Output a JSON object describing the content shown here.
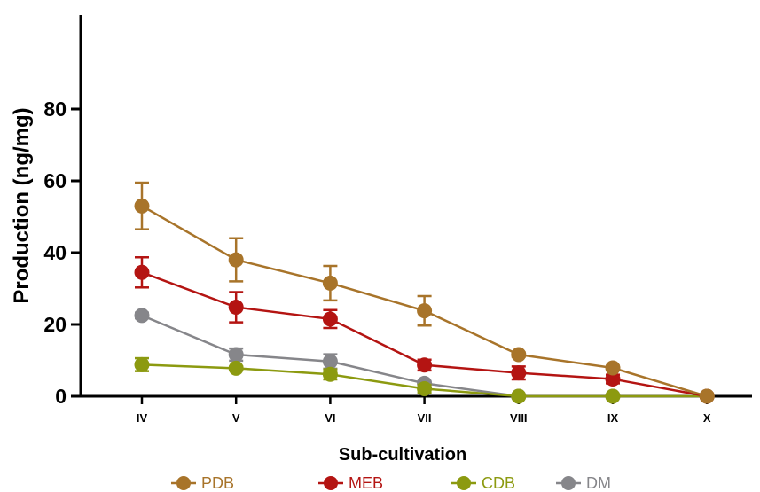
{
  "chart_data": {
    "type": "line",
    "title": "",
    "xlabel": "Sub-cultivation",
    "ylabel": "Production (ng/mg)",
    "categories": [
      "IV",
      "V",
      "VI",
      "VII",
      "VIII",
      "IX",
      "X"
    ],
    "ylim": [
      0,
      80
    ],
    "yticks": [
      0,
      20,
      40,
      60,
      80
    ],
    "grid": false,
    "legend_position": "bottom",
    "series": [
      {
        "name": "PDB",
        "color": "#A8742A",
        "values": [
          53,
          38,
          31.5,
          23.8,
          11.6,
          7.9,
          0
        ],
        "errors": [
          6.5,
          6,
          4.8,
          4.1,
          0.6,
          0.6,
          0
        ]
      },
      {
        "name": "MEB",
        "color": "#B41412",
        "values": [
          34.5,
          24.8,
          21.5,
          8.7,
          6.5,
          4.8,
          0
        ],
        "errors": [
          4.2,
          4.2,
          2.5,
          1.5,
          1.8,
          1.2,
          0
        ]
      },
      {
        "name": "CDB",
        "color": "#8C9A10",
        "values": [
          8.8,
          7.8,
          6.1,
          2.1,
          0,
          0,
          0
        ],
        "errors": [
          1.8,
          0.5,
          1.4,
          1.1,
          0,
          0,
          0
        ]
      },
      {
        "name": "DM",
        "color": "#86868A",
        "values": [
          22.5,
          11.6,
          9.7,
          3.6,
          0,
          0,
          0
        ],
        "errors": [
          0.8,
          1.7,
          2.0,
          0.6,
          0,
          0,
          0
        ]
      }
    ]
  }
}
